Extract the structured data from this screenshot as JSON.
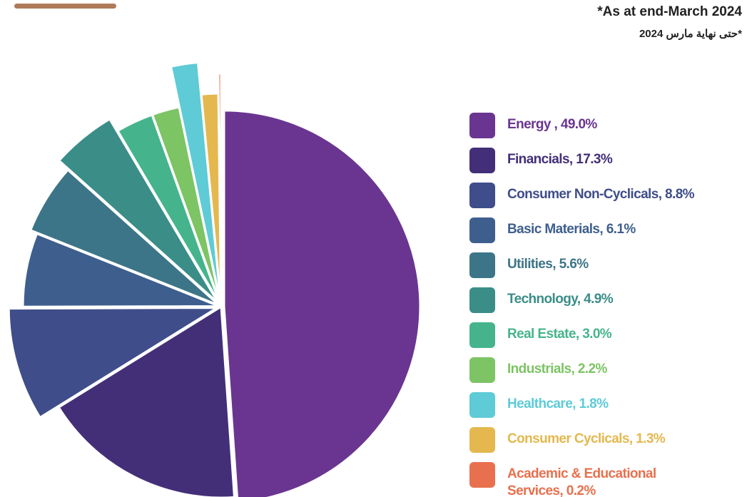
{
  "chart_data": {
    "type": "pie",
    "note_en": "*As at end-March 2024",
    "note_ar": "*حتى نهاية مارس 2024",
    "categories": [
      "Energy , 49.0%",
      "Financials, 17.3%",
      "Consumer Non-Cyclicals, 8.8%",
      "Basic Materials, 6.1%",
      "Utilities, 5.6%",
      "Technology, 4.9%",
      "Real Estate, 3.0%",
      "Industrials, 2.2%",
      "Healthcare, 1.8%",
      "Consumer Cyclicals, 1.3%",
      "Academic & Educational Services, 0.2%"
    ],
    "values": [
      49.0,
      17.3,
      8.8,
      6.1,
      5.6,
      4.9,
      3.0,
      2.2,
      1.8,
      1.3,
      0.2
    ],
    "colors": [
      "#6a3590",
      "#432f78",
      "#3f4d8a",
      "#3e5f8e",
      "#3d7588",
      "#3b8d88",
      "#45b48c",
      "#7cc464",
      "#5ecbd6",
      "#e4b84e",
      "#e8704e"
    ]
  }
}
